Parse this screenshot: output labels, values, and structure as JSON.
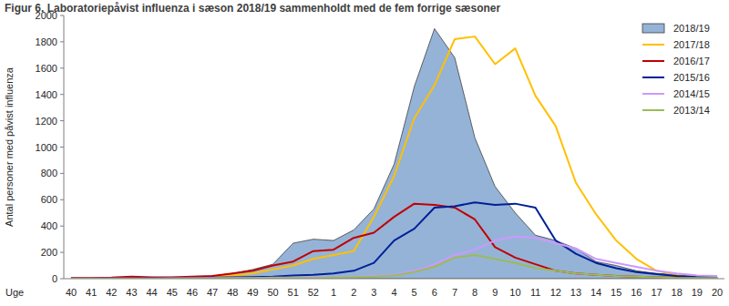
{
  "chart_data": {
    "type": "line",
    "title": "Figur 6. Laboratoriepåvist influenza i sæson 2018/19 sammenholdt med de fem forrige sæsoner",
    "ylabel": "Antal personer med påvist influenza",
    "xlabel": "Uge",
    "categories": [
      "40",
      "41",
      "42",
      "43",
      "44",
      "45",
      "46",
      "47",
      "48",
      "49",
      "50",
      "51",
      "52",
      "1",
      "2",
      "3",
      "4",
      "5",
      "6",
      "7",
      "8",
      "9",
      "10",
      "11",
      "12",
      "13",
      "14",
      "15",
      "16",
      "17",
      "18",
      "19",
      "20"
    ],
    "ylim": [
      0,
      2000
    ],
    "yticks": [
      0,
      200,
      400,
      600,
      800,
      1000,
      1200,
      1400,
      1600,
      1800,
      2000
    ],
    "grid": false,
    "legend": "top-right",
    "series": [
      {
        "name": "2018/19",
        "type": "area",
        "color": "#95b3d7",
        "values": [
          5,
          3,
          3,
          5,
          5,
          8,
          10,
          20,
          40,
          70,
          110,
          270,
          300,
          290,
          370,
          530,
          870,
          1460,
          1900,
          1680,
          1070,
          700,
          500,
          330,
          290,
          230,
          130,
          100,
          60,
          40,
          30,
          20,
          15
        ]
      },
      {
        "name": "2017/18",
        "type": "line",
        "color": "#ffc000",
        "values": [
          5,
          3,
          3,
          3,
          5,
          8,
          10,
          15,
          25,
          40,
          70,
          100,
          150,
          180,
          210,
          470,
          780,
          1220,
          1470,
          1820,
          1840,
          1630,
          1750,
          1390,
          1160,
          730,
          490,
          290,
          150,
          60,
          30,
          20,
          15
        ]
      },
      {
        "name": "2016/17",
        "type": "line",
        "color": "#c00000",
        "values": [
          5,
          5,
          8,
          15,
          10,
          10,
          15,
          20,
          40,
          60,
          100,
          130,
          210,
          220,
          310,
          350,
          470,
          570,
          560,
          540,
          450,
          240,
          160,
          110,
          60,
          40,
          30,
          20,
          15,
          10,
          8,
          5,
          5
        ]
      },
      {
        "name": "2015/16",
        "type": "line",
        "color": "#002097",
        "values": [
          2,
          2,
          2,
          2,
          3,
          3,
          5,
          8,
          10,
          12,
          15,
          25,
          30,
          40,
          60,
          120,
          290,
          380,
          540,
          550,
          580,
          560,
          570,
          540,
          290,
          190,
          120,
          80,
          50,
          35,
          20,
          15,
          10
        ]
      },
      {
        "name": "2014/15",
        "type": "line",
        "color": "#cc99ff",
        "values": [
          2,
          2,
          2,
          2,
          2,
          3,
          3,
          5,
          5,
          5,
          8,
          8,
          10,
          10,
          12,
          20,
          30,
          60,
          110,
          180,
          220,
          290,
          320,
          310,
          270,
          230,
          150,
          120,
          90,
          60,
          40,
          25,
          20
        ]
      },
      {
        "name": "2013/14",
        "type": "line",
        "color": "#9bbb59",
        "values": [
          0,
          0,
          0,
          0,
          0,
          0,
          2,
          2,
          3,
          3,
          5,
          5,
          5,
          8,
          10,
          15,
          25,
          50,
          90,
          160,
          180,
          150,
          120,
          80,
          60,
          40,
          30,
          20,
          15,
          10,
          5,
          5,
          5
        ]
      }
    ]
  }
}
